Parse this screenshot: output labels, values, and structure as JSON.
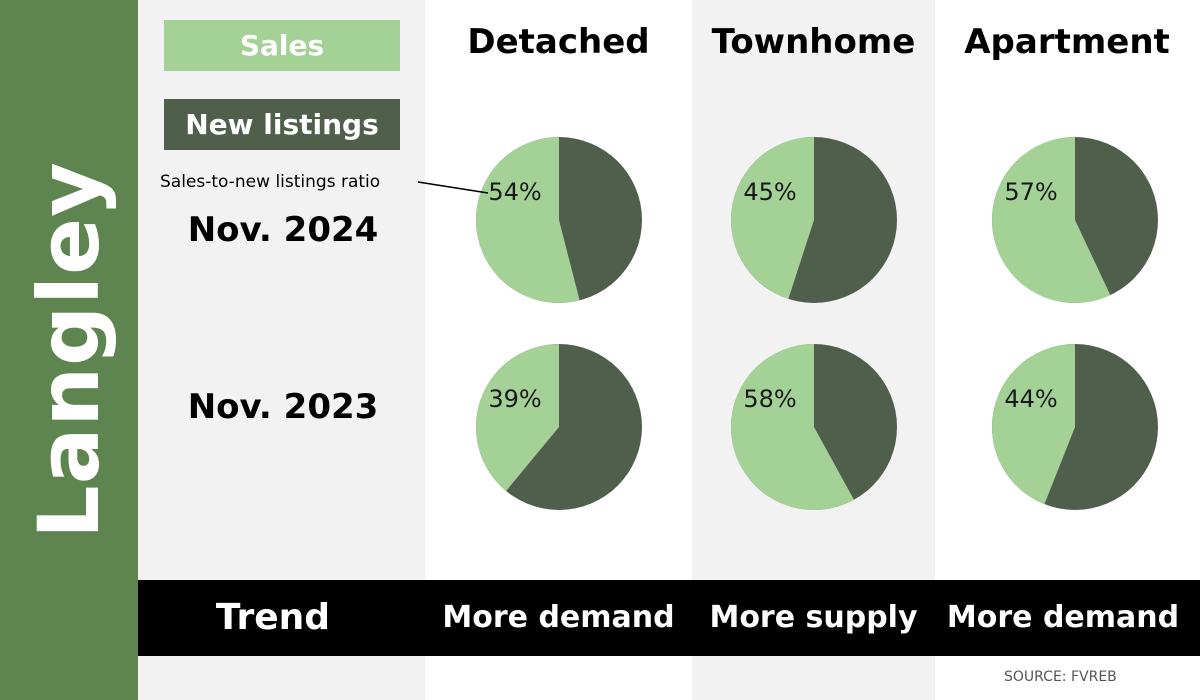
{
  "region": "Langley",
  "legend": {
    "sales_label": "Sales",
    "new_listings_label": "New listings"
  },
  "ratio_label": "Sales-to-new listings ratio",
  "rows": [
    "Nov. 2024",
    "Nov. 2023"
  ],
  "trend_label": "Trend",
  "source": "SOURCE: FVREB",
  "colors": {
    "sales": "#a3d196",
    "new_listings": "#4f5f4c",
    "sidebar": "#5e8550",
    "panel_grey": "#f2f2f2",
    "trend_bar": "#000000"
  },
  "chart_data": {
    "type": "pie",
    "categories": [
      "Detached",
      "Townhome",
      "Apartment"
    ],
    "series": [
      {
        "name": "Nov. 2024",
        "values": [
          54,
          45,
          57
        ]
      },
      {
        "name": "Nov. 2023",
        "values": [
          39,
          58,
          44
        ]
      }
    ],
    "value_labels": [
      [
        "54%",
        "45%",
        "57%"
      ],
      [
        "39%",
        "58%",
        "44%"
      ]
    ],
    "legend": [
      "Sales",
      "New listings"
    ],
    "trends": [
      "More demand",
      "More supply",
      "More demand"
    ]
  }
}
